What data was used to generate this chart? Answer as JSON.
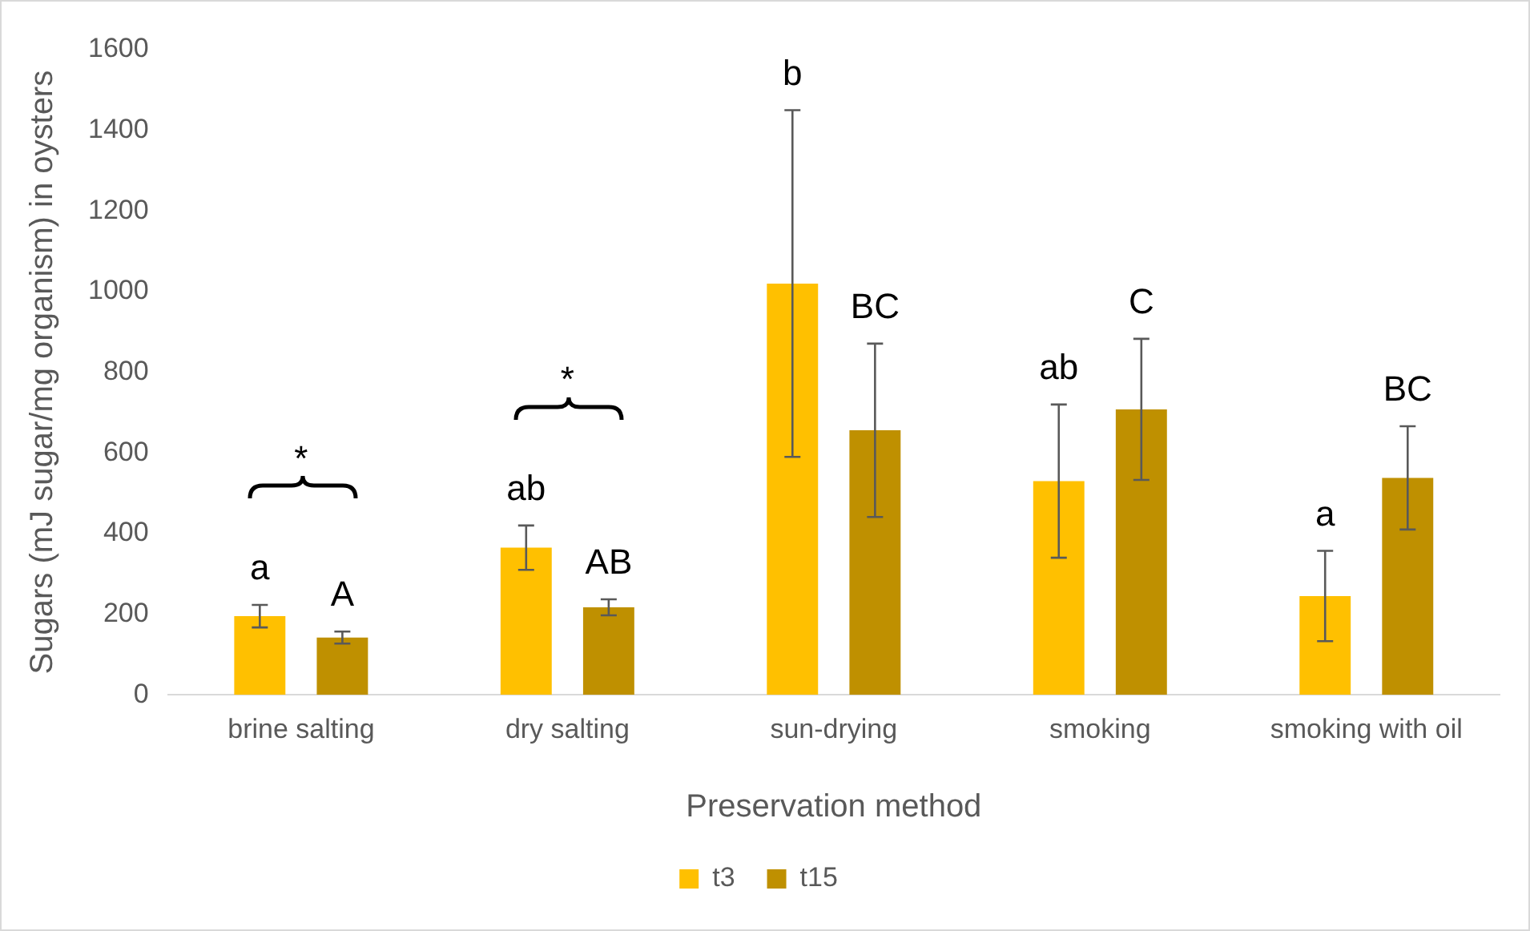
{
  "chart_data": {
    "type": "bar",
    "xlabel": "Preservation method",
    "ylabel": "Sugars (mJ sugar/mg organism) in oysters",
    "categories": [
      "brine salting",
      "dry salting",
      "sun-drying",
      "smoking",
      "smoking with oil"
    ],
    "series": [
      {
        "name": "t3",
        "color": "#ffc000",
        "values": [
          195,
          365,
          1020,
          530,
          245
        ],
        "errors": [
          28,
          55,
          430,
          190,
          112
        ]
      },
      {
        "name": "t15",
        "color": "#bf9000",
        "values": [
          142,
          217,
          656,
          708,
          538
        ],
        "errors": [
          15,
          20,
          215,
          175,
          128
        ]
      }
    ],
    "ylim": [
      0,
      1600
    ],
    "yticks": [
      0,
      200,
      400,
      600,
      800,
      1000,
      1200,
      1400,
      1600
    ],
    "grid": false,
    "legend": "bottom",
    "annotations": [
      "a",
      "A",
      "ab",
      "AB",
      "b",
      "BC",
      "ab",
      "C",
      "a",
      "BC",
      "*",
      "*"
    ]
  }
}
